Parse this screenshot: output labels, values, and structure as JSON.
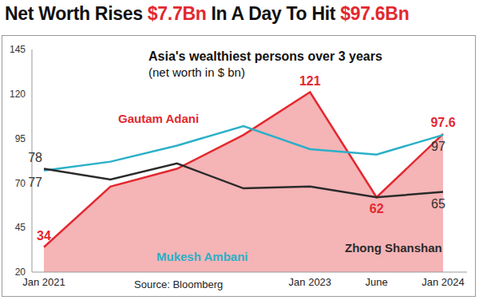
{
  "chart_data": {
    "type": "line",
    "title": "Net Worth Rises $7.7Bn In A Day To Hit $97.6Bn",
    "subtitle": "Asia's wealthiest persons over 3 years",
    "ylabel": "(net worth in $ bn)",
    "source": "Source: Bloomberg",
    "categories": [
      "Jan 2021",
      null,
      null,
      null,
      "Jan 2023",
      "June",
      "Jan 2024"
    ],
    "series": [
      {
        "name": "Gautam Adani",
        "type": "area",
        "color": "#e3282f",
        "values": [
          34,
          68,
          78,
          97,
          121,
          62,
          97.6
        ],
        "value_labels": [
          "34",
          null,
          null,
          null,
          "121",
          "62",
          "97.6"
        ]
      },
      {
        "name": "Mukesh Ambani",
        "type": "line",
        "color": "#2ab0c8",
        "values": [
          77,
          82,
          91,
          102,
          89,
          86,
          97
        ],
        "value_labels": [
          "77",
          null,
          null,
          null,
          null,
          null,
          "97"
        ]
      },
      {
        "name": "Zhong Shanshan",
        "type": "line",
        "color": "#2b2b2b",
        "values": [
          78,
          72,
          81,
          67,
          68,
          62,
          65
        ],
        "value_labels": [
          "78",
          null,
          null,
          null,
          null,
          null,
          "65"
        ]
      }
    ],
    "ylim": [
      20,
      145
    ],
    "yticks": [
      20,
      45,
      70,
      95,
      120,
      145
    ],
    "grid": false,
    "data_labels": true,
    "marker": "none",
    "line_style": "solid"
  }
}
